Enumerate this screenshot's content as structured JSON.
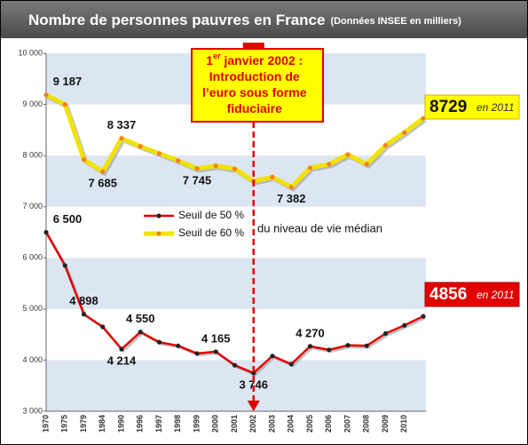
{
  "chart_data": {
    "type": "line",
    "title": "Nombre de personnes pauvres en France",
    "subtitle": "(Données INSEE en milliers)",
    "categories": [
      "1970",
      "1975",
      "1979",
      "1984",
      "1990",
      "1996",
      "1997",
      "1998",
      "1999",
      "2000",
      "2001",
      "2002",
      "2003",
      "2004",
      "2005",
      "2006",
      "2007",
      "2008",
      "2009",
      "2010",
      null
    ],
    "series": [
      {
        "name": "Seuil de 50 %",
        "color": "#e00000",
        "marker_color": "#222222",
        "values": [
          6500,
          5850,
          4898,
          4650,
          4214,
          4550,
          4350,
          4280,
          4130,
          4165,
          3900,
          3746,
          4080,
          3920,
          4270,
          4200,
          4290,
          4280,
          4520,
          4680,
          4856
        ],
        "value_labels": [
          "6 500",
          null,
          "4 898",
          null,
          "4 214",
          "4 550",
          null,
          null,
          null,
          "4 165",
          null,
          "3 746",
          null,
          null,
          "4 270",
          null,
          null,
          null,
          null,
          null,
          null
        ]
      },
      {
        "name": "Seuil de 60 %",
        "color": "#f2e200",
        "marker_color": "#f08020",
        "values": [
          9187,
          9000,
          7920,
          7685,
          8337,
          8180,
          8040,
          7900,
          7745,
          7800,
          7740,
          7500,
          7580,
          7382,
          7760,
          7830,
          8020,
          7830,
          8200,
          8450,
          8729
        ],
        "value_labels": [
          "9 187",
          null,
          null,
          "7 685",
          "8 337",
          null,
          null,
          null,
          "7 745",
          null,
          null,
          null,
          null,
          "7 382",
          null,
          null,
          null,
          null,
          null,
          null,
          null
        ]
      }
    ],
    "legend_note": "du niveau  de vie médian",
    "callout_suffix": "en 2011",
    "annotation": {
      "prefix": "1",
      "sup": "er",
      "lines": [
        " janvier 2002 :",
        "Introduction de",
        "l’euro sous forme",
        "fiduciaire"
      ]
    },
    "ylim": [
      3000,
      10000
    ],
    "yticks": [
      {
        "value": 3000,
        "label": "3 000"
      },
      {
        "value": 4000,
        "label": "4 000"
      },
      {
        "value": 5000,
        "label": "5 000"
      },
      {
        "value": 6000,
        "label": "6 000"
      },
      {
        "value": 7000,
        "label": "7 000"
      },
      {
        "value": 8000,
        "label": "8 000"
      },
      {
        "value": 9000,
        "label": "9 000"
      },
      {
        "value": 10000,
        "label": "10 000"
      }
    ],
    "grid": "bands",
    "band_color": "#dce6f2"
  }
}
